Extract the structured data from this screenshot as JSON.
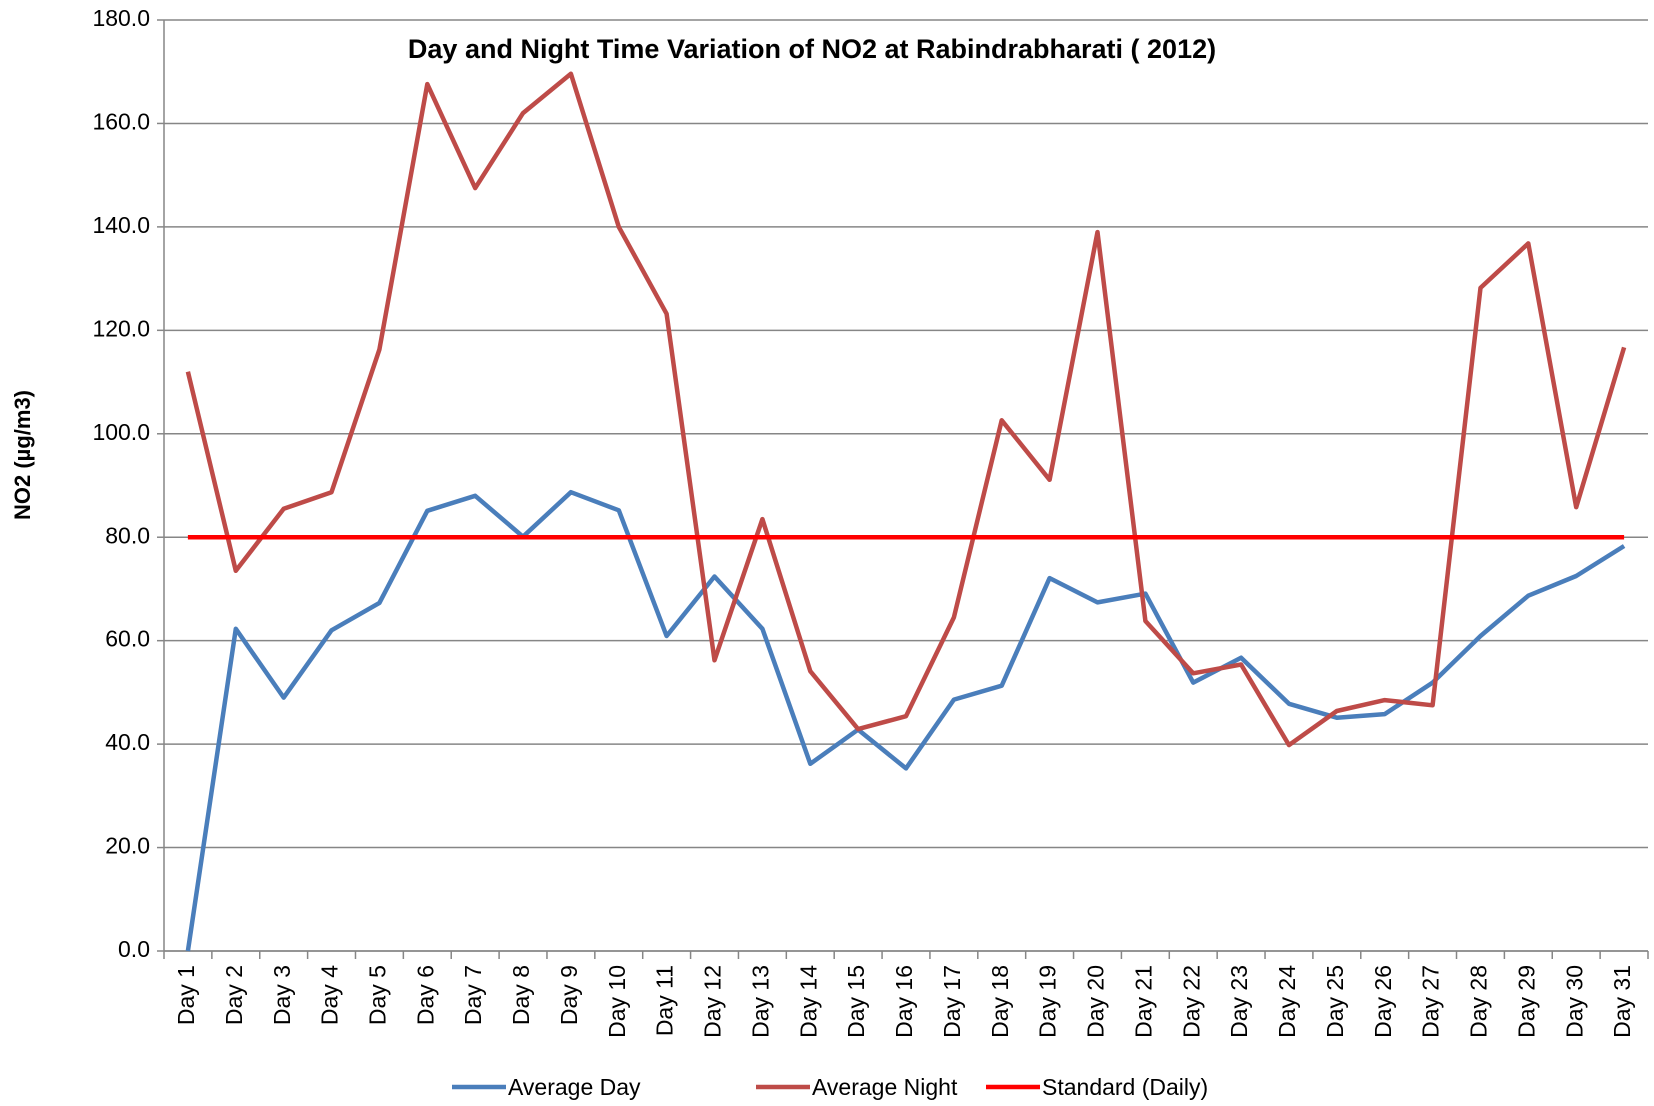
{
  "chart_data": {
    "type": "line",
    "title": "Day and Night Time Variation of NO2 at Rabindrabharati ( 2012)",
    "y_label": "NO2 (µg/m3)",
    "categories": [
      "Day 1",
      "Day 2",
      "Day 3",
      "Day 4",
      "Day 5",
      "Day 6",
      "Day 7",
      "Day 8",
      "Day 9",
      "Day 10",
      "Day 11",
      "Day 12",
      "Day 13",
      "Day 14",
      "Day 15",
      "Day 16",
      "Day 17",
      "Day 18",
      "Day 19",
      "Day 20",
      "Day 21",
      "Day 22",
      "Day 23",
      "Day 24",
      "Day 25",
      "Day 26",
      "Day 27",
      "Day 28",
      "Day 29",
      "Day 30",
      "Day 31"
    ],
    "series": [
      {
        "name": "Average Day",
        "color": "#4a7ebb",
        "values": [
          0,
          62.3,
          49,
          62,
          67.3,
          85.1,
          88,
          80.1,
          88.7,
          85.2,
          60.9,
          72.4,
          62.3,
          36.2,
          42.8,
          35.3,
          48.6,
          51.3,
          72.1,
          67.4,
          69.1,
          51.9,
          56.7,
          47.8,
          45.1,
          45.8,
          51.9,
          60.9,
          68.7,
          72.5,
          78.3
        ]
      },
      {
        "name": "Average Night",
        "color": "#be4b48",
        "values": [
          112,
          73.5,
          85.5,
          88.7,
          116.3,
          167.6,
          147.5,
          162,
          169.6,
          140,
          123.2,
          56.2,
          83.5,
          54.1,
          42.9,
          45.4,
          64.5,
          102.6,
          91.1,
          139,
          63.8,
          53.7,
          55.4,
          39.8,
          46.4,
          48.5,
          47.5,
          128.2,
          136.8,
          85.8,
          116.7
        ]
      },
      {
        "name": "Standard (Daily)",
        "color": "#ff0000",
        "values": [
          80,
          80,
          80,
          80,
          80,
          80,
          80,
          80,
          80,
          80,
          80,
          80,
          80,
          80,
          80,
          80,
          80,
          80,
          80,
          80,
          80,
          80,
          80,
          80,
          80,
          80,
          80,
          80,
          80,
          80,
          80
        ]
      }
    ],
    "ylim": [
      0,
      180
    ],
    "yticks": [
      {
        "value": 0,
        "label": "0.0"
      },
      {
        "value": 20,
        "label": "20.0"
      },
      {
        "value": 40,
        "label": "40.0"
      },
      {
        "value": 60,
        "label": "60.0"
      },
      {
        "value": 80,
        "label": "80.0"
      },
      {
        "value": 100,
        "label": "100.0"
      },
      {
        "value": 120,
        "label": "120.0"
      },
      {
        "value": 140,
        "label": "140.0"
      },
      {
        "value": 160,
        "label": "160.0"
      },
      {
        "value": 180,
        "label": "180.0"
      }
    ],
    "grid": true,
    "legend": "bottom"
  }
}
